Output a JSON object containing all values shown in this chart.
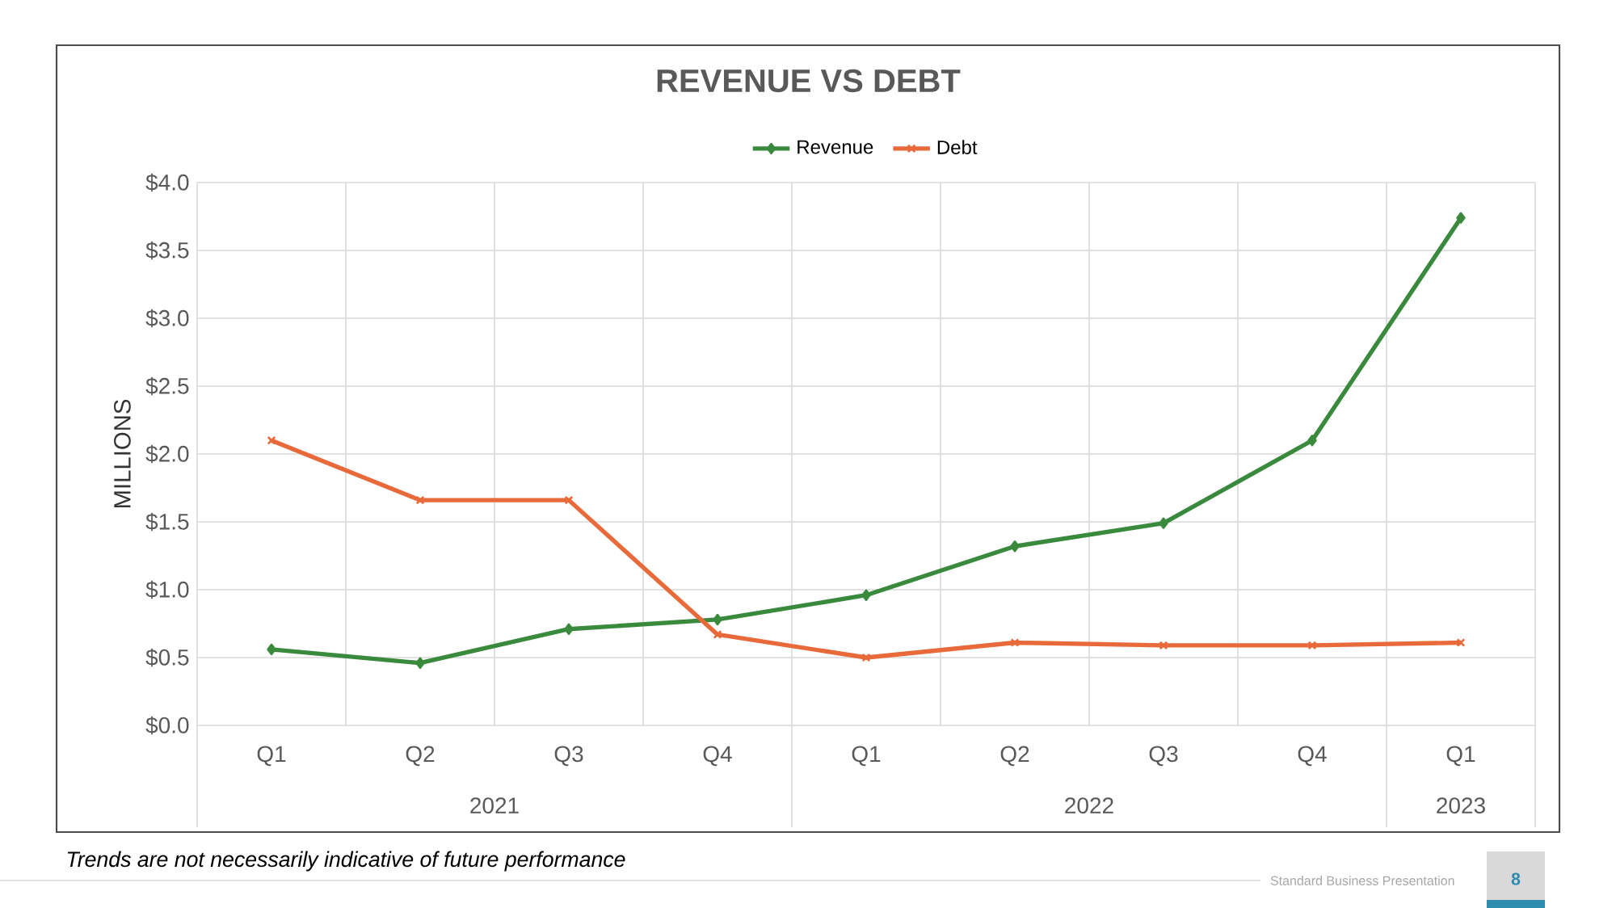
{
  "chart_data": {
    "type": "line",
    "title": "REVENUE VS DEBT",
    "ylabel": "MILLIONS",
    "categories": [
      "Q1",
      "Q2",
      "Q3",
      "Q4",
      "Q1",
      "Q2",
      "Q3",
      "Q4",
      "Q1"
    ],
    "series": [
      {
        "name": "Revenue",
        "color": "#3a8a3e",
        "marker": "diamond",
        "values": [
          0.56,
          0.46,
          0.71,
          0.78,
          0.96,
          1.32,
          1.49,
          2.1,
          3.74
        ]
      },
      {
        "name": "Debt",
        "color": "#e8693a",
        "marker": "cross",
        "values": [
          2.1,
          1.66,
          1.66,
          0.67,
          0.5,
          0.61,
          0.59,
          0.59,
          0.61
        ]
      }
    ],
    "ylim": [
      0,
      4
    ],
    "yticks": [
      {
        "value": 0,
        "label": "$0.0"
      },
      {
        "value": 0.5,
        "label": "$0.5"
      },
      {
        "value": 1,
        "label": "$1.0"
      },
      {
        "value": 1.5,
        "label": "$1.5"
      },
      {
        "value": 2,
        "label": "$2.0"
      },
      {
        "value": 2.5,
        "label": "$2.5"
      },
      {
        "value": 3,
        "label": "$3.0"
      },
      {
        "value": 3.5,
        "label": "$3.5"
      },
      {
        "value": 4,
        "label": "$4.0"
      }
    ],
    "grid": true,
    "legend": "top",
    "annotations": [
      "2021",
      "2022",
      "2023",
      "Trends are not necessarily indicative of future performance",
      "Standard Business Presentation",
      "8"
    ]
  }
}
